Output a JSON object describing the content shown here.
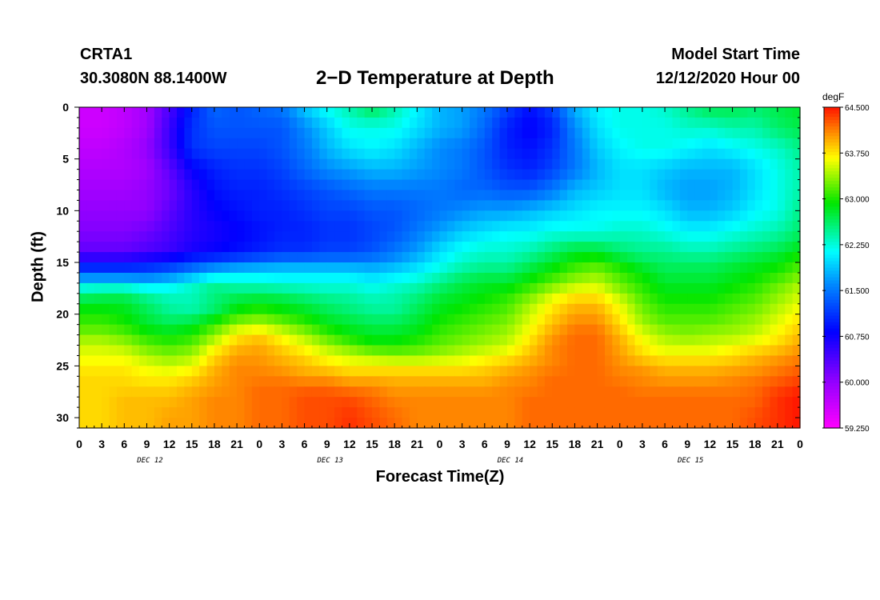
{
  "header": {
    "station": "CRTA1",
    "coords": "30.3080N 88.1400W",
    "title": "2−D Temperature at Depth",
    "model_start_label": "Model Start Time",
    "model_start_value": "12/12/2020 Hour 00"
  },
  "chart_data": {
    "type": "heatmap",
    "title": "2−D Temperature at Depth",
    "xlabel": "Forecast Time(Z)",
    "ylabel": "Depth (ft)",
    "x_hours": [
      0,
      3,
      6,
      9,
      12,
      15,
      18,
      21,
      24,
      27,
      30,
      33,
      36,
      39,
      42,
      45,
      48,
      51,
      54,
      57,
      60,
      63,
      66,
      69,
      72,
      75,
      78,
      81,
      84,
      87,
      90,
      93,
      96
    ],
    "x_tick_labels": [
      "0",
      "3",
      "6",
      "9",
      "12",
      "15",
      "18",
      "21",
      "0",
      "3",
      "6",
      "9",
      "12",
      "15",
      "18",
      "21",
      "0",
      "3",
      "6",
      "9",
      "12",
      "15",
      "18",
      "21",
      "0",
      "3",
      "6",
      "9",
      "12",
      "15",
      "18",
      "21",
      "0"
    ],
    "day_labels": [
      {
        "hour": 9,
        "label": "DEC 12"
      },
      {
        "hour": 33,
        "label": "DEC 13"
      },
      {
        "hour": 57,
        "label": "DEC 14"
      },
      {
        "hour": 81,
        "label": "DEC 15"
      }
    ],
    "y_ticks": [
      0,
      5,
      10,
      15,
      20,
      25,
      30
    ],
    "ylim": [
      31,
      0
    ],
    "xlim": [
      0,
      96
    ],
    "depths": [
      0,
      2,
      4,
      6,
      8,
      10,
      12,
      14,
      15,
      16,
      17,
      18,
      19,
      20,
      21,
      22,
      23,
      24,
      25,
      26,
      27,
      28,
      30,
      31
    ],
    "temperature": [
      [
        59.6,
        59.6,
        59.7,
        59.9,
        60.4,
        61.0,
        61.4,
        61.3,
        61.4,
        61.5,
        61.9,
        62.2,
        62.4,
        62.7,
        62.4,
        62.1,
        61.8,
        61.7,
        61.5,
        61.2,
        60.9,
        61.2,
        61.8,
        62.1,
        62.2,
        62.2,
        62.3,
        62.5,
        62.7,
        62.7,
        62.6,
        62.7,
        62.8
      ],
      [
        59.6,
        59.6,
        59.7,
        59.9,
        60.5,
        61.1,
        61.3,
        61.3,
        61.3,
        61.3,
        61.6,
        61.9,
        62.2,
        62.2,
        62.2,
        62.0,
        61.8,
        61.7,
        61.4,
        61.0,
        60.8,
        61.0,
        61.6,
        62.0,
        62.2,
        62.2,
        62.2,
        62.3,
        62.3,
        62.4,
        62.4,
        62.6,
        62.7
      ],
      [
        59.7,
        59.7,
        59.8,
        60.0,
        60.5,
        61.1,
        61.2,
        61.2,
        61.2,
        61.3,
        61.5,
        61.8,
        62.0,
        62.1,
        62.0,
        61.8,
        61.6,
        61.5,
        61.3,
        61.0,
        60.9,
        61.1,
        61.5,
        61.9,
        62.1,
        62.2,
        62.2,
        62.1,
        62.0,
        62.1,
        62.2,
        62.3,
        62.5
      ],
      [
        59.8,
        59.8,
        59.8,
        59.9,
        60.3,
        60.8,
        61.0,
        61.1,
        61.1,
        61.2,
        61.4,
        61.6,
        61.7,
        61.8,
        61.8,
        61.7,
        61.6,
        61.5,
        61.3,
        61.1,
        61.0,
        61.2,
        61.5,
        61.8,
        62.0,
        62.0,
        61.9,
        61.8,
        61.8,
        61.8,
        62.0,
        62.2,
        62.4
      ],
      [
        59.9,
        59.9,
        59.9,
        60.0,
        60.2,
        60.6,
        60.9,
        61.0,
        61.0,
        61.1,
        61.2,
        61.3,
        61.4,
        61.5,
        61.5,
        61.5,
        61.5,
        61.4,
        61.4,
        61.3,
        61.3,
        61.5,
        61.8,
        61.9,
        62.0,
        62.0,
        61.8,
        61.7,
        61.7,
        61.8,
        62.0,
        62.2,
        62.4
      ],
      [
        60.0,
        60.0,
        60.0,
        60.0,
        60.3,
        60.6,
        60.8,
        60.9,
        61.0,
        61.0,
        61.1,
        61.2,
        61.2,
        61.3,
        61.3,
        61.4,
        61.5,
        61.6,
        61.7,
        61.7,
        61.8,
        61.9,
        62.0,
        62.1,
        62.1,
        62.1,
        62.0,
        61.8,
        61.8,
        61.9,
        62.1,
        62.2,
        62.5
      ],
      [
        60.1,
        60.1,
        60.1,
        60.2,
        60.4,
        60.6,
        60.7,
        60.8,
        60.9,
        61.0,
        61.0,
        61.1,
        61.1,
        61.2,
        61.3,
        61.5,
        61.7,
        61.9,
        62.0,
        62.1,
        62.1,
        62.2,
        62.2,
        62.2,
        62.3,
        62.3,
        62.2,
        62.1,
        62.1,
        62.2,
        62.3,
        62.4,
        62.6
      ],
      [
        60.3,
        60.3,
        60.3,
        60.4,
        60.5,
        60.7,
        60.8,
        60.9,
        61.0,
        61.1,
        61.1,
        61.2,
        61.2,
        61.3,
        61.5,
        61.7,
        62.0,
        62.2,
        62.3,
        62.3,
        62.4,
        62.6,
        62.8,
        62.8,
        62.6,
        62.5,
        62.5,
        62.4,
        62.4,
        62.5,
        62.6,
        62.7,
        62.9
      ],
      [
        60.8,
        60.8,
        60.8,
        60.9,
        61.0,
        61.2,
        61.3,
        61.4,
        61.5,
        61.6,
        61.6,
        61.6,
        61.6,
        61.6,
        61.7,
        61.9,
        62.1,
        62.3,
        62.4,
        62.4,
        62.6,
        62.8,
        63.0,
        63.1,
        62.9,
        62.7,
        62.6,
        62.6,
        62.6,
        62.7,
        62.8,
        62.9,
        63.1
      ],
      [
        61.3,
        61.3,
        61.3,
        61.3,
        61.4,
        61.6,
        61.9,
        62.0,
        62.0,
        62.0,
        62.0,
        62.0,
        62.0,
        61.9,
        62.0,
        62.1,
        62.3,
        62.5,
        62.6,
        62.6,
        62.8,
        63.0,
        63.2,
        63.3,
        63.1,
        62.9,
        62.7,
        62.7,
        62.7,
        62.8,
        62.9,
        63.0,
        63.2
      ],
      [
        62.0,
        62.0,
        62.0,
        61.9,
        62.0,
        62.2,
        62.4,
        62.3,
        62.3,
        62.2,
        62.2,
        62.2,
        62.2,
        62.1,
        62.2,
        62.3,
        62.5,
        62.7,
        62.8,
        62.8,
        63.0,
        63.2,
        63.4,
        63.5,
        63.2,
        63.0,
        62.8,
        62.8,
        62.8,
        62.9,
        63.0,
        63.2,
        63.4
      ],
      [
        62.5,
        62.6,
        62.6,
        62.4,
        62.3,
        62.4,
        62.6,
        62.6,
        62.6,
        62.6,
        62.5,
        62.4,
        62.4,
        62.3,
        62.4,
        62.5,
        62.7,
        62.8,
        62.9,
        63.0,
        63.2,
        63.5,
        63.7,
        63.7,
        63.4,
        63.1,
        62.9,
        62.9,
        62.9,
        63.0,
        63.1,
        63.3,
        63.5
      ],
      [
        62.8,
        62.8,
        62.8,
        62.6,
        62.4,
        62.3,
        62.5,
        62.8,
        62.9,
        62.8,
        62.7,
        62.6,
        62.5,
        62.4,
        62.4,
        62.6,
        62.8,
        62.9,
        63.0,
        63.1,
        63.4,
        63.7,
        63.9,
        63.9,
        63.6,
        63.2,
        63.0,
        63.0,
        63.0,
        63.1,
        63.2,
        63.4,
        63.6
      ],
      [
        63.0,
        63.0,
        62.9,
        62.7,
        62.5,
        62.5,
        62.7,
        63.0,
        63.1,
        63.0,
        62.9,
        62.7,
        62.6,
        62.5,
        62.5,
        62.7,
        62.9,
        63.0,
        63.1,
        63.2,
        63.5,
        63.8,
        64.0,
        64.0,
        63.7,
        63.3,
        63.1,
        63.1,
        63.1,
        63.2,
        63.3,
        63.5,
        63.7
      ],
      [
        63.1,
        63.1,
        63.0,
        62.8,
        62.7,
        62.8,
        63.1,
        63.4,
        63.5,
        63.3,
        63.1,
        62.9,
        62.8,
        62.7,
        62.7,
        62.8,
        63.0,
        63.1,
        63.2,
        63.3,
        63.6,
        63.9,
        64.1,
        64.1,
        63.8,
        63.4,
        63.2,
        63.2,
        63.2,
        63.3,
        63.4,
        63.6,
        63.8
      ],
      [
        63.3,
        63.3,
        63.2,
        63.0,
        62.9,
        63.0,
        63.3,
        63.7,
        63.8,
        63.6,
        63.4,
        63.1,
        62.9,
        62.8,
        62.8,
        62.9,
        63.1,
        63.2,
        63.3,
        63.4,
        63.7,
        64.0,
        64.2,
        64.2,
        63.9,
        63.6,
        63.4,
        63.3,
        63.4,
        63.4,
        63.5,
        63.7,
        63.9
      ],
      [
        63.5,
        63.5,
        63.4,
        63.2,
        63.1,
        63.2,
        63.6,
        63.9,
        64.0,
        63.8,
        63.6,
        63.4,
        63.2,
        63.0,
        63.0,
        63.1,
        63.2,
        63.3,
        63.4,
        63.5,
        63.8,
        64.1,
        64.2,
        64.2,
        64.0,
        63.7,
        63.5,
        63.5,
        63.5,
        63.6,
        63.7,
        63.8,
        64.0
      ],
      [
        63.6,
        63.6,
        63.6,
        63.4,
        63.3,
        63.4,
        63.8,
        64.0,
        64.0,
        63.9,
        63.8,
        63.6,
        63.5,
        63.4,
        63.3,
        63.3,
        63.4,
        63.5,
        63.6,
        63.7,
        63.9,
        64.1,
        64.2,
        64.2,
        64.0,
        63.8,
        63.7,
        63.7,
        63.7,
        63.8,
        63.9,
        64.0,
        64.1
      ],
      [
        63.7,
        63.7,
        63.7,
        63.6,
        63.5,
        63.6,
        63.9,
        64.1,
        64.1,
        64.0,
        63.9,
        63.8,
        63.7,
        63.7,
        63.7,
        63.7,
        63.7,
        63.7,
        63.8,
        63.9,
        64.0,
        64.1,
        64.2,
        64.2,
        64.1,
        64.0,
        63.9,
        63.9,
        63.9,
        63.9,
        64.0,
        64.1,
        64.2
      ],
      [
        63.8,
        63.8,
        63.8,
        63.7,
        63.7,
        63.8,
        64.0,
        64.1,
        64.1,
        64.1,
        64.0,
        64.0,
        63.9,
        63.9,
        63.9,
        63.9,
        63.9,
        63.9,
        63.9,
        64.0,
        64.1,
        64.2,
        64.2,
        64.2,
        64.1,
        64.1,
        64.0,
        64.0,
        64.0,
        64.1,
        64.1,
        64.2,
        64.3
      ],
      [
        63.8,
        63.8,
        63.8,
        63.8,
        63.8,
        63.9,
        64.0,
        64.1,
        64.2,
        64.2,
        64.2,
        64.2,
        64.1,
        64.1,
        64.0,
        64.0,
        64.0,
        64.0,
        64.0,
        64.1,
        64.1,
        64.2,
        64.2,
        64.2,
        64.2,
        64.1,
        64.1,
        64.1,
        64.1,
        64.1,
        64.2,
        64.3,
        64.4
      ],
      [
        63.8,
        63.8,
        63.9,
        63.9,
        63.9,
        64.0,
        64.1,
        64.1,
        64.2,
        64.2,
        64.3,
        64.3,
        64.3,
        64.2,
        64.1,
        64.1,
        64.1,
        64.1,
        64.1,
        64.1,
        64.2,
        64.2,
        64.2,
        64.2,
        64.2,
        64.2,
        64.2,
        64.2,
        64.2,
        64.2,
        64.2,
        64.4,
        64.5
      ],
      [
        63.8,
        63.8,
        63.9,
        63.9,
        64.0,
        64.0,
        64.1,
        64.1,
        64.2,
        64.2,
        64.3,
        64.3,
        64.4,
        64.3,
        64.2,
        64.1,
        64.1,
        64.1,
        64.1,
        64.1,
        64.2,
        64.2,
        64.2,
        64.2,
        64.2,
        64.2,
        64.2,
        64.2,
        64.2,
        64.2,
        64.3,
        64.4,
        64.5
      ],
      [
        63.8,
        63.8,
        63.9,
        63.9,
        64.0,
        64.0,
        64.1,
        64.1,
        64.2,
        64.2,
        64.3,
        64.3,
        64.4,
        64.3,
        64.2,
        64.1,
        64.1,
        64.1,
        64.1,
        64.1,
        64.2,
        64.2,
        64.2,
        64.2,
        64.2,
        64.2,
        64.2,
        64.2,
        64.2,
        64.2,
        64.3,
        64.4,
        64.5
      ]
    ],
    "colorbar": {
      "units": "degF",
      "min": 59.25,
      "max": 64.5,
      "tick_values": [
        59.25,
        60.0,
        60.75,
        61.5,
        62.25,
        63.0,
        63.75,
        64.5
      ],
      "tick_labels": [
        "59.250",
        "60.000",
        "60.750",
        "61.500",
        "62.250",
        "63.000",
        "63.750",
        "64.500"
      ]
    }
  }
}
